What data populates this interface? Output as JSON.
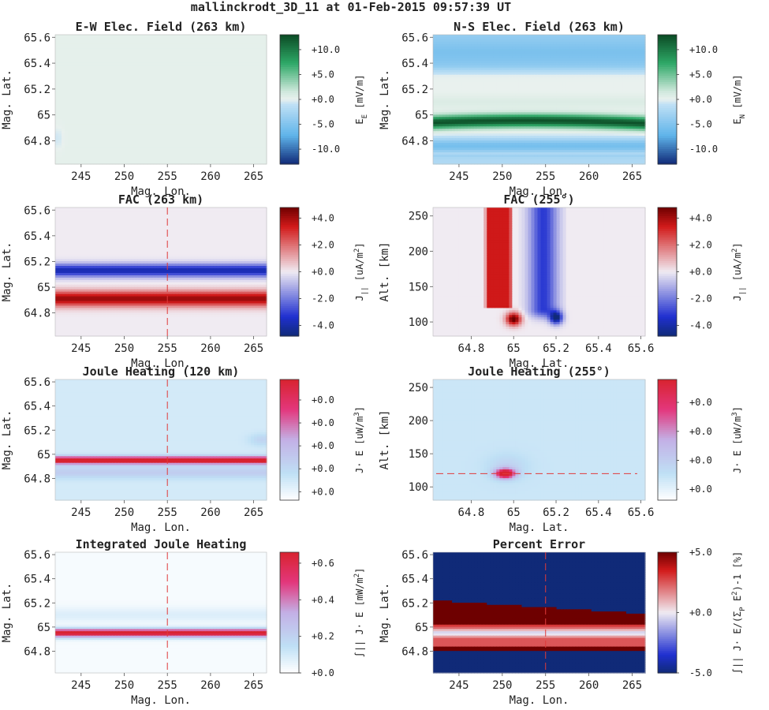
{
  "figure": {
    "title": "mallinckrodt_3D_11 at 01-Feb-2015 09:57:39 UT"
  },
  "colors": {
    "dark_green": "#0b4a24",
    "mid_green": "#2ea867",
    "pale_green": "#cfe8dc",
    "pale_blue": "#bfe0f5",
    "sky_blue": "#5fb4ea",
    "dark_blue": "#102a78",
    "dark_red": "#6e0000",
    "red": "#d21a1a",
    "blue": "#2030d0",
    "heat_red": "#d8232f",
    "heat_pink": "#e3377c",
    "heat_lavender": "#c3b0e6",
    "heat_white": "#ffffff",
    "guide_line": "#e03a3a",
    "background_tint": "#e9f1ee"
  },
  "chart_data": [
    {
      "type": "heatmap",
      "title": "E-W Elec. Field (263 km)",
      "xlabel": "Mag. Lon.",
      "ylabel": "Mag. Lat.",
      "xlim": [
        242,
        266.5
      ],
      "ylim": [
        64.62,
        65.62
      ],
      "xticks": [
        "245",
        "250",
        "255",
        "260",
        "265"
      ],
      "yticks": [
        "64.8",
        "65",
        "65.2",
        "65.4",
        "65.6"
      ],
      "colormap": "green-blue",
      "colorbar": {
        "label": "E_E [mV/m]",
        "ticks": [
          "+10.0",
          "+5.0",
          "+0.0",
          "-5.0",
          "-10.0"
        ],
        "range": [
          -13,
          13
        ]
      },
      "pattern": "near-zero field everywhere",
      "guide": null
    },
    {
      "type": "heatmap",
      "title": "N-S Elec. Field (263 km)",
      "xlabel": "Mag. Lon.",
      "ylabel": "Mag. Lat.",
      "xlim": [
        242,
        266.5
      ],
      "ylim": [
        64.62,
        65.62
      ],
      "xticks": [
        "245",
        "250",
        "255",
        "260",
        "265"
      ],
      "yticks": [
        "64.8",
        "65",
        "65.2",
        "65.4",
        "65.6"
      ],
      "colormap": "green-blue",
      "colorbar": {
        "label": "E_N [mV/m]",
        "ticks": [
          "+10.0",
          "+5.0",
          "+0.0",
          "-5.0",
          "-10.0"
        ],
        "range": [
          -13,
          13
        ]
      },
      "pattern": "strong positive band near 64.95, negative band near 64.75",
      "guide": null
    },
    {
      "type": "heatmap",
      "title": "FAC (263 km)",
      "xlabel": "Mag. Lon.",
      "ylabel": "Mag. Lat.",
      "xlim": [
        242,
        266.5
      ],
      "ylim": [
        64.62,
        65.62
      ],
      "xticks": [
        "245",
        "250",
        "255",
        "260",
        "265"
      ],
      "yticks": [
        "64.8",
        "65",
        "65.2",
        "65.4",
        "65.6"
      ],
      "colormap": "red-blue",
      "colorbar": {
        "label": "J_|| [uA/m^2]",
        "ticks": [
          "+4.0",
          "+2.0",
          "+0.0",
          "-2.0",
          "-4.0"
        ],
        "range": [
          -4.8,
          4.8
        ]
      },
      "pattern": "upward current band near 64.9, downward band near 65.13",
      "guide": {
        "axis": "x",
        "value": 255
      }
    },
    {
      "type": "heatmap",
      "title": "FAC (255°)",
      "xlabel": "Mag. Lat.",
      "ylabel": "Alt. [km]",
      "xlim": [
        64.62,
        65.62
      ],
      "ylim": [
        80,
        262
      ],
      "xticks": [
        "64.8",
        "65",
        "65.2",
        "65.4",
        "65.6"
      ],
      "yticks": [
        "100",
        "150",
        "200",
        "250"
      ],
      "colormap": "red-blue",
      "colorbar": {
        "label": "J_|| [uA/m^2]",
        "ticks": [
          "+4.0",
          "+2.0",
          "+0.0",
          "-2.0",
          "-4.0"
        ],
        "range": [
          -4.8,
          4.8
        ]
      },
      "pattern": "red column 64.9–65.0, blue column 65.05–65.2 above 120 km, strong spots near 105 km",
      "guide": null
    },
    {
      "type": "heatmap",
      "title": "Joule Heating (120 km)",
      "xlabel": "Mag. Lon.",
      "ylabel": "Mag. Lat.",
      "xlim": [
        242,
        266.5
      ],
      "ylim": [
        64.62,
        65.62
      ],
      "xticks": [
        "245",
        "250",
        "255",
        "260",
        "265"
      ],
      "yticks": [
        "64.8",
        "65",
        "65.2",
        "65.4",
        "65.6"
      ],
      "colormap": "heat",
      "colorbar": {
        "label": "J· E [uW/m^3]",
        "ticks": [
          "+0.0",
          "+0.0",
          "+0.0",
          "+0.0",
          "+0.0"
        ],
        "range": [
          0,
          1
        ]
      },
      "pattern": "intense heating band near 64.95",
      "guide": {
        "axis": "x",
        "value": 255
      }
    },
    {
      "type": "heatmap",
      "title": "Joule Heating (255°)",
      "xlabel": "Mag. Lat.",
      "ylabel": "Alt. [km]",
      "xlim": [
        64.62,
        65.62
      ],
      "ylim": [
        80,
        262
      ],
      "xticks": [
        "64.8",
        "65",
        "65.2",
        "65.4",
        "65.6"
      ],
      "yticks": [
        "100",
        "150",
        "200",
        "250"
      ],
      "colormap": "heat",
      "colorbar": {
        "label": "J· E [uW/m^3]",
        "ticks": [
          "+0.0",
          "+0.0",
          "+0.0",
          "+0.0"
        ],
        "range": [
          0,
          1
        ]
      },
      "pattern": "heating spot at 64.95, 120 km",
      "guide": {
        "axis": "y",
        "value": 120
      }
    },
    {
      "type": "heatmap",
      "title": "Integrated Joule Heating",
      "xlabel": "Mag. Lon.",
      "ylabel": "Mag. Lat.",
      "xlim": [
        242,
        266.5
      ],
      "ylim": [
        64.62,
        65.62
      ],
      "xticks": [
        "245",
        "250",
        "255",
        "260",
        "265"
      ],
      "yticks": [
        "64.8",
        "65",
        "65.2",
        "65.4",
        "65.6"
      ],
      "colormap": "heat",
      "colorbar": {
        "label": "∫|| J· E [mW/m^2]",
        "ticks": [
          "+0.6",
          "+0.4",
          "+0.2",
          "+0.0"
        ],
        "range": [
          0,
          0.66
        ]
      },
      "pattern": "integrated heating band near 64.95",
      "guide": {
        "axis": "x",
        "value": 255
      }
    },
    {
      "type": "heatmap",
      "title": "Percent Error",
      "xlabel": "Mag. Lon.",
      "ylabel": "Mag. Lat.",
      "xlim": [
        242,
        266.5
      ],
      "ylim": [
        64.62,
        65.62
      ],
      "xticks": [
        "245",
        "250",
        "255",
        "260",
        "265"
      ],
      "yticks": [
        "64.8",
        "65",
        "65.2",
        "65.4",
        "65.6"
      ],
      "colormap": "red-blue",
      "colorbar": {
        "label": "∫|| J· E/(Σ_P E^2)-1 [%]",
        "ticks": [
          "+5.0",
          "+0.0",
          "-5.0"
        ],
        "range": [
          -5,
          5
        ]
      },
      "pattern": "saturated negative background, positive bands near 65.1 and 64.83",
      "guide": {
        "axis": "x",
        "value": 255
      }
    }
  ]
}
